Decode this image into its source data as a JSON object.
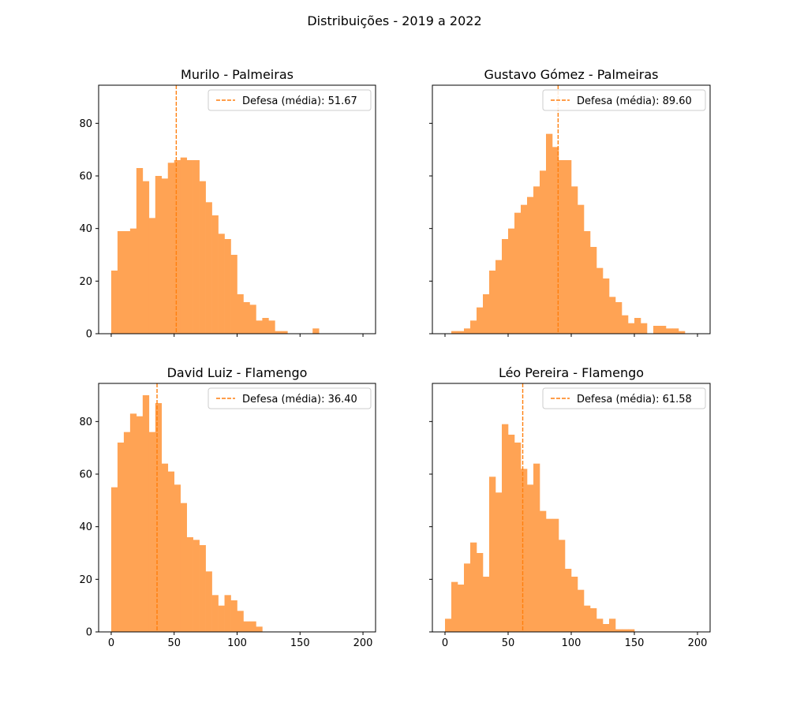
{
  "figure": {
    "title": "Distribuições - 2019 a 2022"
  },
  "chart_data": [
    {
      "type": "bar",
      "title": "Murilo - Palmeiras",
      "bin_width": 5,
      "bin_start": 0,
      "values": [
        24,
        39,
        39,
        40,
        63,
        58,
        44,
        60,
        59,
        65,
        66,
        67,
        66,
        66,
        58,
        50,
        45,
        38,
        36,
        30,
        15,
        12,
        11,
        5,
        6,
        5,
        1,
        1,
        0,
        0,
        0,
        0,
        2,
        0,
        0,
        0,
        0,
        0,
        0,
        0
      ],
      "mean_line": {
        "value": 51.67,
        "label": "Defesa (média): 51.67"
      },
      "xlim": [
        -10,
        210
      ],
      "ylim": [
        0,
        94.5
      ],
      "xticks": [
        0,
        50,
        100,
        150,
        200
      ],
      "yticks": [
        0,
        20,
        40,
        60,
        80
      ],
      "show_xticklabels": false,
      "show_yticklabels": true,
      "legend_position": "top-right"
    },
    {
      "type": "bar",
      "title": "Gustavo Gómez - Palmeiras",
      "bin_width": 5,
      "bin_start": 0,
      "values": [
        0,
        1,
        1,
        2,
        5,
        10,
        15,
        24,
        28,
        36,
        40,
        46,
        49,
        52,
        56,
        62,
        76,
        71,
        66,
        66,
        56,
        49,
        39,
        33,
        25,
        21,
        14,
        12,
        7,
        4,
        6,
        4,
        0,
        3,
        3,
        2,
        2,
        1,
        0,
        0
      ],
      "mean_line": {
        "value": 89.6,
        "label": "Defesa (média): 89.60"
      },
      "xlim": [
        -10,
        210
      ],
      "ylim": [
        0,
        94.5
      ],
      "xticks": [
        0,
        50,
        100,
        150,
        200
      ],
      "yticks": [
        0,
        20,
        40,
        60,
        80
      ],
      "show_xticklabels": false,
      "show_yticklabels": false,
      "legend_position": "top-right"
    },
    {
      "type": "bar",
      "title": "David Luiz - Flamengo",
      "bin_width": 5,
      "bin_start": 0,
      "values": [
        55,
        72,
        76,
        83,
        82,
        90,
        76,
        87,
        64,
        61,
        56,
        49,
        36,
        35,
        33,
        23,
        14,
        10,
        14,
        12,
        8,
        4,
        4,
        2,
        0,
        0,
        0,
        0,
        0,
        0,
        0,
        0,
        0,
        0,
        0,
        0,
        0,
        0,
        0,
        0
      ],
      "mean_line": {
        "value": 36.4,
        "label": "Defesa (média): 36.40"
      },
      "xlim": [
        -10,
        210
      ],
      "ylim": [
        0,
        94.5
      ],
      "xticks": [
        0,
        50,
        100,
        150,
        200
      ],
      "yticks": [
        0,
        20,
        40,
        60,
        80
      ],
      "show_xticklabels": true,
      "show_yticklabels": true,
      "legend_position": "top-right"
    },
    {
      "type": "bar",
      "title": "Léo Pereira - Flamengo",
      "bin_width": 5,
      "bin_start": 0,
      "values": [
        5,
        19,
        18,
        26,
        34,
        30,
        21,
        59,
        53,
        79,
        75,
        72,
        62,
        56,
        64,
        46,
        43,
        43,
        35,
        24,
        21,
        16,
        10,
        9,
        5,
        3,
        5,
        1,
        1,
        1,
        0,
        0,
        0,
        0,
        0,
        0,
        0,
        0,
        0,
        0
      ],
      "mean_line": {
        "value": 61.58,
        "label": "Defesa (média): 61.58"
      },
      "xlim": [
        -10,
        210
      ],
      "ylim": [
        0,
        94.5
      ],
      "xticks": [
        0,
        50,
        100,
        150,
        200
      ],
      "yticks": [
        0,
        20,
        40,
        60,
        80
      ],
      "show_xticklabels": true,
      "show_yticklabels": false,
      "legend_position": "top-right"
    }
  ],
  "colors": {
    "bar": "#ffa354",
    "mean_line": "#ff7f0e",
    "axis": "#000000"
  }
}
